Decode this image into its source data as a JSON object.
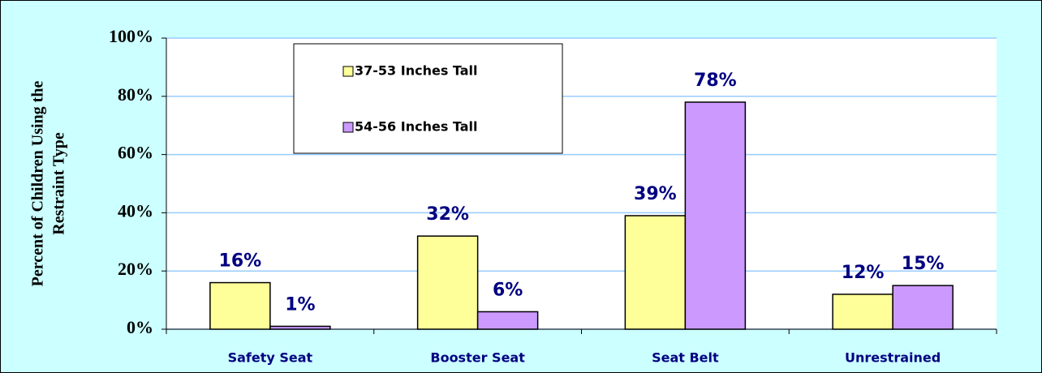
{
  "chart_data": {
    "type": "bar",
    "y_label_lines": [
      "Percent of Children Using the",
      "Restraint Type"
    ],
    "categories": [
      "Safety Seat",
      "Booster Seat",
      "Seat Belt",
      "Unrestrained"
    ],
    "series": [
      {
        "name": "37-53 Inches Tall",
        "color": "#ffff99",
        "values": [
          16,
          32,
          39,
          12
        ],
        "value_labels": [
          "16%",
          "32%",
          "39%",
          "12%"
        ]
      },
      {
        "name": "54-56 Inches Tall",
        "color": "#cc99ff",
        "values": [
          1,
          6,
          78,
          15
        ],
        "value_labels": [
          "1%",
          "6%",
          "78%",
          "15%"
        ]
      }
    ],
    "ylim": [
      0,
      100
    ],
    "yticks": [
      {
        "value": 0,
        "label": "0%"
      },
      {
        "value": 20,
        "label": "20%"
      },
      {
        "value": 40,
        "label": "40%"
      },
      {
        "value": 60,
        "label": "60%"
      },
      {
        "value": 80,
        "label": "80%"
      },
      {
        "value": 100,
        "label": "100%"
      }
    ],
    "grid": true,
    "legend": "upper left"
  }
}
